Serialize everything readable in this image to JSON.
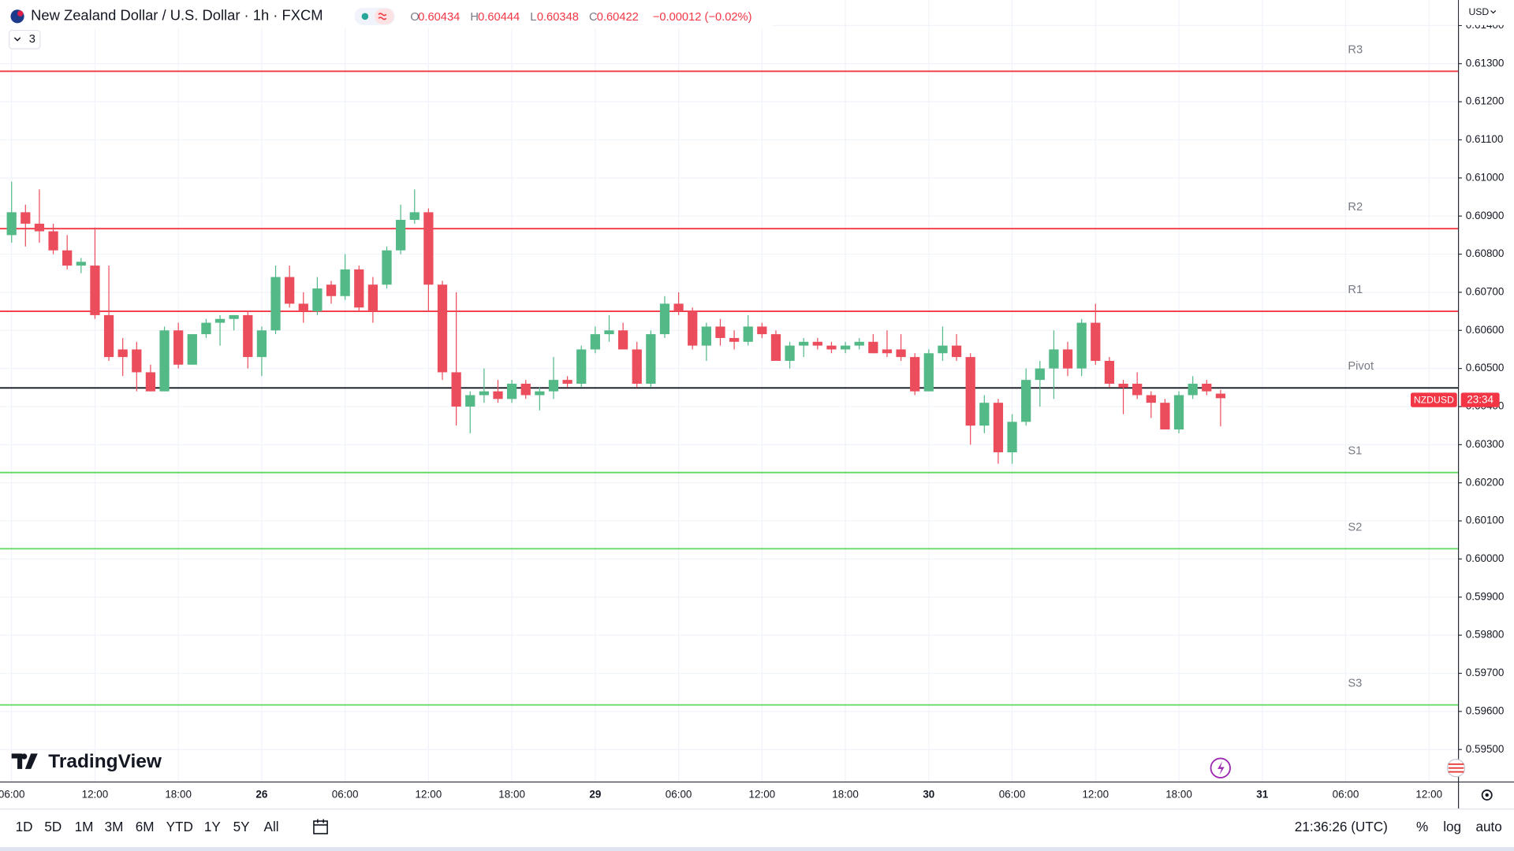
{
  "header": {
    "title": "New Zealand Dollar / U.S. Dollar · 1h · FXCM",
    "open_key": "O",
    "open": 0.60434,
    "high_key": "H",
    "high": 0.60444,
    "low_key": "L",
    "low": 0.60348,
    "close_key": "C",
    "close": 0.60422,
    "change": "−0.00012 (−0.02%)",
    "indicators": "3",
    "currency": "USD",
    "symbol_badge": "NZDUSD",
    "countdown": "23:34",
    "logo": "TradingView"
  },
  "chart_data": {
    "type": "candlestick",
    "up_color": "#53b987",
    "down_color": "#eb4d5c",
    "grid": true,
    "ylim": [
      0.59416,
      0.61467
    ],
    "yticks": [
      {
        "value": 0.595,
        "label": "0.59500"
      },
      {
        "value": 0.596,
        "label": "0.59600"
      },
      {
        "value": 0.597,
        "label": "0.59700"
      },
      {
        "value": 0.598,
        "label": "0.59800"
      },
      {
        "value": 0.599,
        "label": "0.59900"
      },
      {
        "value": 0.6,
        "label": "0.60000"
      },
      {
        "value": 0.601,
        "label": "0.60100"
      },
      {
        "value": 0.602,
        "label": "0.60200"
      },
      {
        "value": 0.603,
        "label": "0.60300"
      },
      {
        "value": 0.604,
        "label": "0.60400"
      },
      {
        "value": 0.605,
        "label": "0.60500"
      },
      {
        "value": 0.606,
        "label": "0.60600"
      },
      {
        "value": 0.607,
        "label": "0.60700"
      },
      {
        "value": 0.608,
        "label": "0.60800"
      },
      {
        "value": 0.609,
        "label": "0.60900"
      },
      {
        "value": 0.61,
        "label": "0.61000"
      },
      {
        "value": 0.611,
        "label": "0.61100"
      },
      {
        "value": 0.612,
        "label": "0.61200"
      },
      {
        "value": 0.613,
        "label": "0.61300"
      },
      {
        "value": 0.614,
        "label": "0.61400"
      }
    ],
    "categories": [
      "06:00",
      null,
      null,
      null,
      null,
      null,
      "12:00",
      null,
      null,
      null,
      null,
      null,
      "18:00",
      null,
      null,
      null,
      null,
      null,
      "26",
      null,
      null,
      null,
      null,
      null,
      "06:00",
      null,
      null,
      null,
      null,
      null,
      "12:00",
      null,
      null,
      null,
      null,
      null,
      "18:00",
      null,
      null,
      null,
      null,
      null,
      "29",
      null,
      null,
      null,
      null,
      null,
      "06:00",
      null,
      null,
      null,
      null,
      null,
      "12:00",
      null,
      null,
      null,
      null,
      null,
      "18:00",
      null,
      null,
      null,
      null,
      null,
      "30",
      null,
      null,
      null,
      null,
      null,
      "06:00",
      null,
      null,
      null,
      null,
      null,
      "12:00",
      null,
      null,
      null,
      null,
      null,
      "18:00",
      null,
      null,
      null,
      null,
      null,
      "31",
      null,
      null,
      null,
      null,
      null,
      "06:00",
      null,
      null,
      null,
      null,
      null,
      "12:00"
    ],
    "open": [
      0.6085,
      0.6091,
      0.6088,
      0.6086,
      0.6081,
      0.6077,
      0.6077,
      0.6064,
      0.6055,
      0.6055,
      0.6049,
      0.6044,
      0.606,
      0.6051,
      0.6059,
      0.6062,
      0.6063,
      0.6064,
      0.6053,
      0.606,
      0.6074,
      0.6067,
      0.6065,
      0.6072,
      0.6069,
      0.6076,
      0.6072,
      0.6072,
      0.6081,
      0.6089,
      0.6091,
      0.6072,
      0.6049,
      0.604,
      0.6043,
      0.6044,
      0.6042,
      0.6046,
      0.6043,
      0.6044,
      0.6047,
      0.6046,
      0.6055,
      0.6059,
      0.606,
      0.6055,
      0.6046,
      0.6059,
      0.6067,
      0.6065,
      0.6056,
      0.6061,
      0.6058,
      0.6057,
      0.6061,
      0.6059,
      0.6052,
      0.6056,
      0.6057,
      0.6056,
      0.6055,
      0.6056,
      0.6057,
      0.6055,
      0.6055,
      0.6053,
      0.6044,
      0.6054,
      0.6056,
      0.6053,
      0.6035,
      0.6041,
      0.6028,
      0.6036,
      0.6047,
      0.605,
      0.6055,
      0.605,
      0.6062,
      0.6052,
      0.6046,
      0.6046,
      0.6043,
      0.6041,
      0.6034,
      0.6043,
      0.6046,
      0.60434,
      null,
      null,
      null,
      null,
      null,
      null,
      null,
      null,
      null,
      null,
      null,
      null,
      null,
      null,
      null
    ],
    "high": [
      0.6099,
      0.6093,
      0.6097,
      0.6088,
      0.6085,
      0.6079,
      0.6087,
      0.6077,
      0.6058,
      0.6057,
      0.6051,
      0.6061,
      0.6062,
      0.6059,
      0.6063,
      0.6064,
      0.6064,
      0.6065,
      0.6061,
      0.6077,
      0.6077,
      0.607,
      0.6074,
      0.6073,
      0.608,
      0.6077,
      0.6074,
      0.6082,
      0.6093,
      0.6097,
      0.6092,
      0.6073,
      0.607,
      0.6044,
      0.605,
      0.6047,
      0.6047,
      0.6047,
      0.6045,
      0.6053,
      0.6048,
      0.6056,
      0.6061,
      0.6064,
      0.6062,
      0.6057,
      0.606,
      0.6069,
      0.607,
      0.6066,
      0.6062,
      0.6063,
      0.606,
      0.6064,
      0.6062,
      0.606,
      0.6057,
      0.6058,
      0.6058,
      0.6057,
      0.6057,
      0.6058,
      0.6059,
      0.606,
      0.6059,
      0.6054,
      0.6055,
      0.6061,
      0.6059,
      0.6054,
      0.6043,
      0.6042,
      0.6038,
      0.605,
      0.6052,
      0.606,
      0.6057,
      0.6063,
      0.6067,
      0.6053,
      0.6047,
      0.6049,
      0.6044,
      0.6042,
      0.6044,
      0.6048,
      0.6047,
      0.60444,
      null,
      null,
      null,
      null,
      null,
      null,
      null,
      null,
      null,
      null,
      null,
      null,
      null,
      null,
      null
    ],
    "low": [
      0.6083,
      0.6082,
      0.6083,
      0.608,
      0.6076,
      0.6075,
      0.6063,
      0.6052,
      0.6048,
      0.6044,
      0.6044,
      0.6044,
      0.605,
      0.6051,
      0.6058,
      0.6056,
      0.606,
      0.605,
      0.6048,
      0.6059,
      0.6066,
      0.6062,
      0.6064,
      0.6067,
      0.6068,
      0.6065,
      0.6062,
      0.6071,
      0.608,
      0.6088,
      0.6065,
      0.6047,
      0.6035,
      0.6033,
      0.6041,
      0.6041,
      0.6041,
      0.6042,
      0.6039,
      0.6042,
      0.6045,
      0.6045,
      0.6054,
      0.6057,
      0.6055,
      0.6045,
      0.6045,
      0.6058,
      0.6064,
      0.6055,
      0.6052,
      0.6056,
      0.6055,
      0.6056,
      0.6058,
      0.6052,
      0.605,
      0.6053,
      0.6055,
      0.6054,
      0.6054,
      0.6055,
      0.6054,
      0.6053,
      0.6052,
      0.6043,
      0.6044,
      0.6052,
      0.6052,
      0.603,
      0.6033,
      0.6025,
      0.6025,
      0.6035,
      0.604,
      0.6042,
      0.6048,
      0.6048,
      0.6051,
      0.6045,
      0.6038,
      0.6042,
      0.6037,
      0.6034,
      0.6033,
      0.6042,
      0.6043,
      0.60348,
      null,
      null,
      null,
      null,
      null,
      null,
      null,
      null,
      null,
      null,
      null,
      null,
      null,
      null,
      null
    ],
    "close": [
      0.6091,
      0.6088,
      0.6086,
      0.6081,
      0.6077,
      0.6078,
      0.6064,
      0.6053,
      0.6053,
      0.6049,
      0.6044,
      0.606,
      0.6051,
      0.6059,
      0.6062,
      0.6063,
      0.6064,
      0.6053,
      0.606,
      0.6074,
      0.6067,
      0.6065,
      0.6071,
      0.6069,
      0.6076,
      0.6066,
      0.6065,
      0.6081,
      0.6089,
      0.6091,
      0.6072,
      0.6049,
      0.604,
      0.6043,
      0.6044,
      0.6042,
      0.6046,
      0.6043,
      0.6044,
      0.6047,
      0.6046,
      0.6055,
      0.6059,
      0.606,
      0.6055,
      0.6046,
      0.6059,
      0.6067,
      0.6065,
      0.6056,
      0.6061,
      0.6058,
      0.6057,
      0.6061,
      0.6059,
      0.6052,
      0.6056,
      0.6057,
      0.6056,
      0.6055,
      0.6056,
      0.6057,
      0.6054,
      0.6054,
      0.6053,
      0.6044,
      0.6054,
      0.6056,
      0.6053,
      0.6035,
      0.6041,
      0.6028,
      0.6036,
      0.6047,
      0.605,
      0.6055,
      0.605,
      0.6062,
      0.6052,
      0.6046,
      0.6045,
      0.6043,
      0.6041,
      0.6034,
      0.6043,
      0.6046,
      0.6044,
      0.60422,
      null,
      null,
      null,
      null,
      null,
      null,
      null,
      null,
      null,
      null,
      null,
      null,
      null,
      null,
      null
    ],
    "levels": [
      {
        "name": "R3",
        "value": 0.6128,
        "color": "#f23645"
      },
      {
        "name": "R2",
        "value": 0.60867,
        "color": "#f23645"
      },
      {
        "name": "R1",
        "value": 0.6065,
        "color": "#f23645"
      },
      {
        "name": "Pivot",
        "value": 0.60449,
        "color": "#131722"
      },
      {
        "name": "S1",
        "value": 0.60227,
        "color": "#5fd85f"
      },
      {
        "name": "S2",
        "value": 0.60027,
        "color": "#5fd85f"
      },
      {
        "name": "S3",
        "value": 0.59617,
        "color": "#5fd85f"
      }
    ]
  },
  "toolbar": {
    "ranges": [
      "1D",
      "5D",
      "1M",
      "3M",
      "6M",
      "YTD",
      "1Y",
      "5Y",
      "All"
    ],
    "clock": "21:36:26 (UTC)",
    "percent": "%",
    "log": "log",
    "auto": "auto"
  }
}
